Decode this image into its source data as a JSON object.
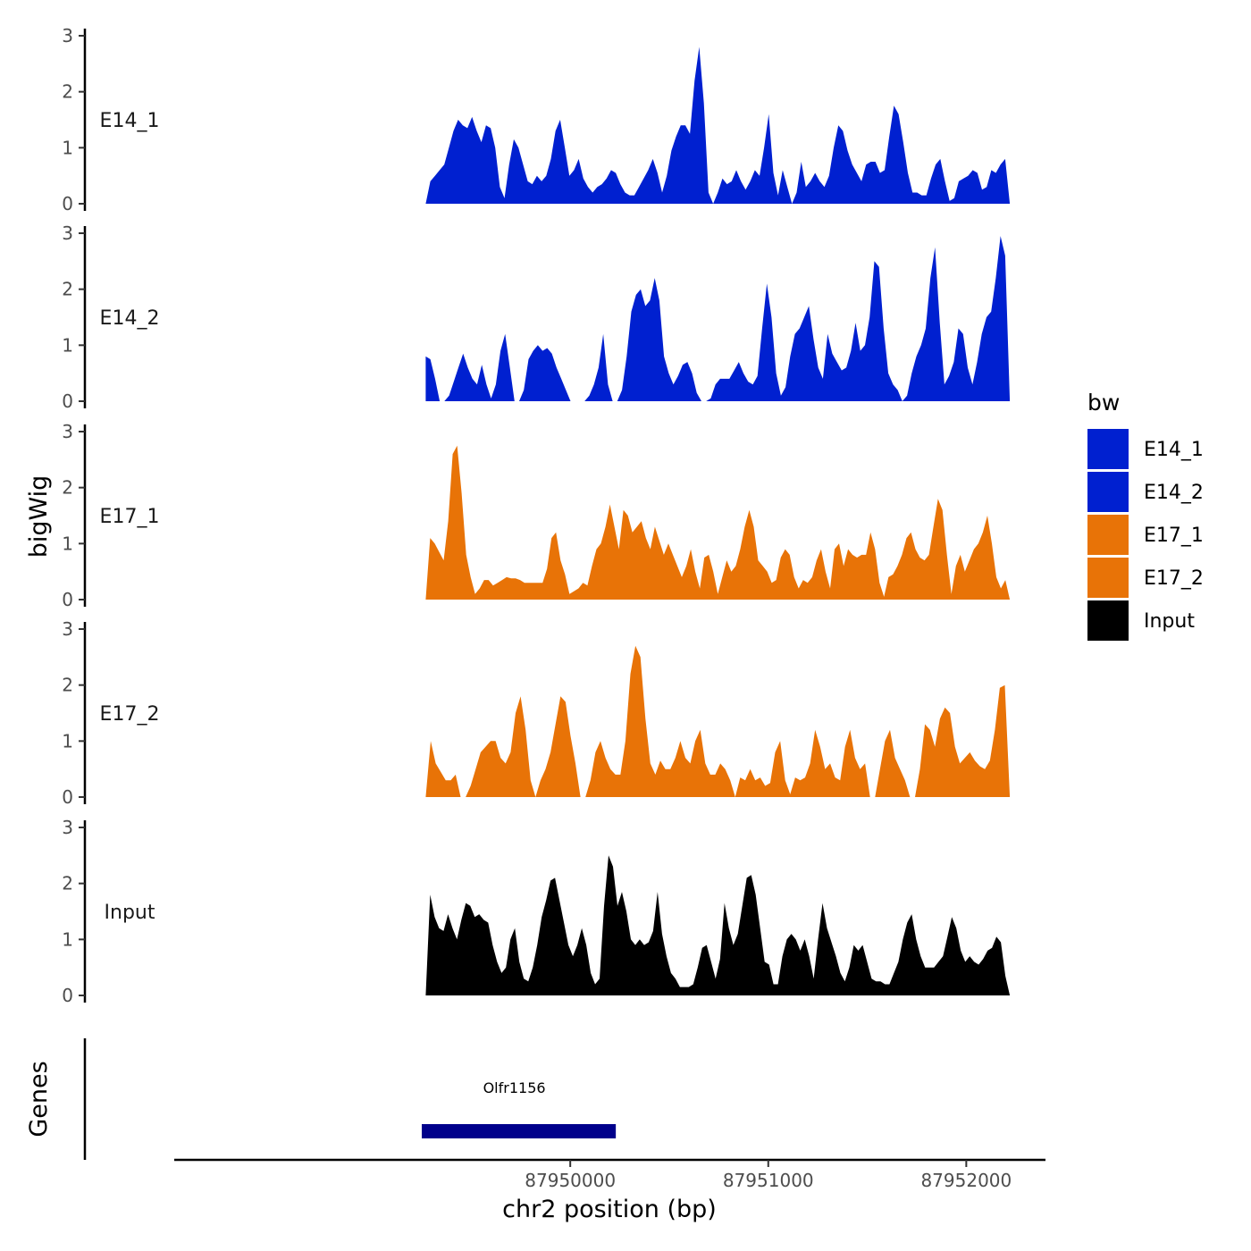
{
  "chart_data": {
    "type": "area",
    "title": "",
    "xlabel": "chr2 position (bp)",
    "ylabel": "bigWig",
    "genes_label": "Genes",
    "xlim": [
      87948000,
      87952400
    ],
    "x_ticks": [
      87950000,
      87951000,
      87952000
    ],
    "x_tick_labels": [
      "87950000",
      "87951000",
      "87952000"
    ],
    "ylim": [
      0,
      3
    ],
    "y_ticks": [
      0,
      1,
      2,
      3
    ],
    "y_tick_labels": [
      "0",
      "1",
      "2",
      "3"
    ],
    "x_start": 87949270,
    "x_end": 87952220,
    "legend": {
      "title": "bw",
      "position": "right",
      "entries": [
        {
          "label": "E14_1",
          "color": "#0020D0"
        },
        {
          "label": "E14_2",
          "color": "#0020D0"
        },
        {
          "label": "E17_1",
          "color": "#E87307"
        },
        {
          "label": "E17_2",
          "color": "#E87307"
        },
        {
          "label": "Input",
          "color": "#000000"
        }
      ]
    },
    "series": [
      {
        "name": "E14_1",
        "color": "#0020D0",
        "values": [
          0.0,
          0.4,
          0.5,
          0.6,
          0.7,
          1.0,
          1.3,
          1.5,
          1.4,
          1.35,
          1.55,
          1.3,
          1.1,
          1.4,
          1.35,
          1.0,
          0.3,
          0.1,
          0.7,
          1.15,
          1.0,
          0.7,
          0.4,
          0.35,
          0.5,
          0.4,
          0.5,
          0.8,
          1.3,
          1.5,
          1.0,
          0.5,
          0.6,
          0.8,
          0.45,
          0.3,
          0.2,
          0.3,
          0.35,
          0.45,
          0.6,
          0.55,
          0.35,
          0.2,
          0.15,
          0.15,
          0.3,
          0.45,
          0.6,
          0.8,
          0.55,
          0.2,
          0.5,
          0.95,
          1.2,
          1.4,
          1.4,
          1.25,
          2.2,
          2.8,
          1.8,
          0.2,
          0.0,
          0.2,
          0.45,
          0.35,
          0.4,
          0.6,
          0.4,
          0.25,
          0.4,
          0.6,
          0.5,
          1.0,
          1.6,
          0.55,
          0.15,
          0.6,
          0.3,
          0.0,
          0.2,
          0.75,
          0.3,
          0.4,
          0.55,
          0.4,
          0.3,
          0.5,
          1.0,
          1.4,
          1.3,
          0.95,
          0.7,
          0.55,
          0.4,
          0.7,
          0.75,
          0.75,
          0.55,
          0.6,
          1.2,
          1.75,
          1.6,
          1.1,
          0.55,
          0.2,
          0.2,
          0.15,
          0.15,
          0.45,
          0.7,
          0.8,
          0.4,
          0.05,
          0.1,
          0.4,
          0.45,
          0.5,
          0.6,
          0.55,
          0.25,
          0.3,
          0.6,
          0.55,
          0.7,
          0.8,
          0.0
        ]
      },
      {
        "name": "E14_2",
        "color": "#0020D0",
        "values": [
          0.8,
          0.75,
          0.4,
          0.0,
          0.0,
          0.1,
          0.35,
          0.6,
          0.85,
          0.6,
          0.4,
          0.3,
          0.65,
          0.3,
          0.05,
          0.3,
          0.9,
          1.2,
          0.6,
          0.0,
          0.0,
          0.2,
          0.75,
          0.9,
          1.0,
          0.9,
          0.95,
          0.85,
          0.6,
          0.4,
          0.2,
          0.0,
          0.0,
          0.0,
          0.0,
          0.1,
          0.3,
          0.6,
          1.2,
          0.3,
          0.0,
          0.0,
          0.2,
          0.8,
          1.6,
          1.9,
          2.0,
          1.7,
          1.8,
          2.2,
          1.8,
          0.8,
          0.5,
          0.3,
          0.45,
          0.65,
          0.7,
          0.5,
          0.15,
          0.0,
          0.0,
          0.05,
          0.3,
          0.4,
          0.4,
          0.4,
          0.55,
          0.7,
          0.5,
          0.35,
          0.3,
          0.45,
          1.3,
          2.1,
          1.5,
          0.5,
          0.1,
          0.25,
          0.8,
          1.2,
          1.3,
          1.5,
          1.7,
          1.1,
          0.6,
          0.4,
          1.2,
          0.85,
          0.7,
          0.55,
          0.6,
          0.9,
          1.4,
          0.9,
          1.0,
          1.5,
          2.5,
          2.4,
          1.3,
          0.5,
          0.3,
          0.2,
          0.0,
          0.1,
          0.5,
          0.8,
          1.0,
          1.3,
          2.2,
          2.75,
          1.4,
          0.3,
          0.45,
          0.7,
          1.3,
          1.2,
          0.6,
          0.3,
          0.7,
          1.2,
          1.5,
          1.6,
          2.2,
          2.95,
          2.6,
          0.0
        ]
      },
      {
        "name": "E17_1",
        "color": "#E87307",
        "values": [
          0.0,
          1.1,
          1.0,
          0.85,
          0.7,
          1.4,
          2.6,
          2.75,
          1.9,
          0.8,
          0.4,
          0.1,
          0.2,
          0.35,
          0.35,
          0.25,
          0.3,
          0.35,
          0.4,
          0.38,
          0.38,
          0.35,
          0.3,
          0.3,
          0.3,
          0.3,
          0.3,
          0.55,
          1.1,
          1.2,
          0.7,
          0.45,
          0.1,
          0.15,
          0.2,
          0.3,
          0.25,
          0.6,
          0.9,
          1.0,
          1.3,
          1.7,
          1.3,
          0.9,
          1.6,
          1.5,
          1.2,
          1.3,
          1.4,
          1.1,
          0.9,
          1.3,
          1.05,
          0.8,
          1.0,
          0.8,
          0.6,
          0.4,
          0.6,
          0.9,
          0.5,
          0.2,
          0.75,
          0.8,
          0.5,
          0.1,
          0.4,
          0.7,
          0.5,
          0.6,
          0.9,
          1.3,
          1.6,
          1.3,
          0.7,
          0.6,
          0.5,
          0.3,
          0.35,
          0.75,
          0.9,
          0.8,
          0.4,
          0.2,
          0.35,
          0.3,
          0.4,
          0.7,
          0.9,
          0.5,
          0.2,
          0.9,
          1.0,
          0.6,
          0.9,
          0.8,
          0.75,
          0.8,
          0.8,
          1.2,
          0.9,
          0.3,
          0.05,
          0.4,
          0.45,
          0.6,
          0.8,
          1.1,
          1.2,
          0.9,
          0.75,
          0.7,
          0.8,
          1.3,
          1.8,
          1.6,
          0.8,
          0.1,
          0.6,
          0.8,
          0.5,
          0.7,
          0.9,
          1.0,
          1.2,
          1.5,
          1.0,
          0.4,
          0.2,
          0.35,
          0.0
        ]
      },
      {
        "name": "E17_2",
        "color": "#E87307",
        "values": [
          0.0,
          1.0,
          0.6,
          0.45,
          0.3,
          0.3,
          0.4,
          0.0,
          0.0,
          0.2,
          0.5,
          0.8,
          0.9,
          1.0,
          1.0,
          0.7,
          0.6,
          0.8,
          1.5,
          1.8,
          1.2,
          0.3,
          0.0,
          0.3,
          0.5,
          0.8,
          1.3,
          1.8,
          1.7,
          1.1,
          0.6,
          0.0,
          0.0,
          0.3,
          0.8,
          1.0,
          0.7,
          0.5,
          0.4,
          0.4,
          1.0,
          2.2,
          2.7,
          2.5,
          1.4,
          0.6,
          0.4,
          0.65,
          0.5,
          0.5,
          0.7,
          1.0,
          0.7,
          0.6,
          1.0,
          1.2,
          0.6,
          0.4,
          0.4,
          0.6,
          0.5,
          0.3,
          0.0,
          0.35,
          0.3,
          0.5,
          0.3,
          0.35,
          0.2,
          0.25,
          0.8,
          1.0,
          0.3,
          0.05,
          0.35,
          0.3,
          0.35,
          0.6,
          1.2,
          0.9,
          0.5,
          0.6,
          0.35,
          0.3,
          0.9,
          1.2,
          0.7,
          0.5,
          0.6,
          0.0,
          0.0,
          0.5,
          1.0,
          1.2,
          0.7,
          0.5,
          0.3,
          0.0,
          0.0,
          0.5,
          1.3,
          1.2,
          0.9,
          1.4,
          1.6,
          1.5,
          0.9,
          0.6,
          0.7,
          0.8,
          0.65,
          0.55,
          0.5,
          0.65,
          1.2,
          1.95,
          2.0,
          0.0
        ]
      },
      {
        "name": "Input",
        "color": "#000000",
        "values": [
          0.0,
          1.8,
          1.4,
          1.2,
          1.15,
          1.45,
          1.2,
          1.0,
          1.35,
          1.65,
          1.6,
          1.4,
          1.45,
          1.35,
          1.3,
          0.9,
          0.6,
          0.4,
          0.5,
          1.0,
          1.2,
          0.6,
          0.3,
          0.25,
          0.5,
          0.9,
          1.4,
          1.7,
          2.05,
          2.1,
          1.7,
          1.3,
          0.9,
          0.7,
          0.9,
          1.2,
          0.9,
          0.4,
          0.2,
          0.3,
          1.6,
          2.5,
          2.3,
          1.6,
          1.85,
          1.5,
          1.0,
          0.9,
          1.0,
          0.9,
          0.95,
          1.15,
          1.85,
          1.1,
          0.7,
          0.4,
          0.3,
          0.15,
          0.15,
          0.15,
          0.2,
          0.5,
          0.85,
          0.9,
          0.6,
          0.3,
          0.65,
          1.65,
          1.2,
          0.9,
          1.1,
          1.6,
          2.1,
          2.15,
          1.8,
          1.2,
          0.6,
          0.55,
          0.2,
          0.2,
          0.7,
          1.0,
          1.1,
          1.0,
          0.8,
          1.0,
          0.7,
          0.3,
          1.0,
          1.65,
          1.2,
          0.95,
          0.7,
          0.4,
          0.25,
          0.5,
          0.9,
          0.8,
          0.9,
          0.6,
          0.3,
          0.25,
          0.25,
          0.2,
          0.2,
          0.4,
          0.6,
          1.0,
          1.3,
          1.45,
          1.0,
          0.7,
          0.5,
          0.5,
          0.5,
          0.6,
          0.7,
          1.05,
          1.4,
          1.2,
          0.8,
          0.6,
          0.7,
          0.6,
          0.55,
          0.65,
          0.8,
          0.85,
          1.05,
          0.95,
          0.35,
          0.0
        ]
      }
    ],
    "genes": [
      {
        "name": "Olfr1156",
        "start": 87949250,
        "end": 87950230,
        "color": "#00008B"
      }
    ]
  }
}
